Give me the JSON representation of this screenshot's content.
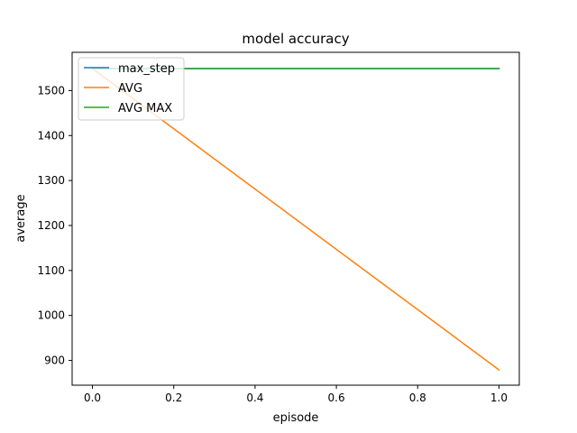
{
  "chart_data": {
    "type": "line",
    "title": "model accuracy",
    "xlabel": "episode",
    "ylabel": "average",
    "x": [
      0.0,
      1.0
    ],
    "xlim": [
      -0.05,
      1.05
    ],
    "ylim": [
      845,
      1585
    ],
    "xticks": [
      0.0,
      0.2,
      0.4,
      0.6,
      0.8,
      1.0
    ],
    "xtick_labels": [
      "0.0",
      "0.2",
      "0.4",
      "0.6",
      "0.8",
      "1.0"
    ],
    "yticks": [
      900,
      1000,
      1100,
      1200,
      1300,
      1400,
      1500
    ],
    "ytick_labels": [
      "900",
      "1000",
      "1100",
      "1200",
      "1300",
      "1400",
      "1500"
    ],
    "grid": false,
    "legend_position": "upper-left",
    "series": [
      {
        "name": "max_step",
        "values": [
          1549,
          1549
        ],
        "color": "#1f77b4"
      },
      {
        "name": "AVG",
        "values": [
          1549,
          879
        ],
        "color": "#ff7f0e"
      },
      {
        "name": "AVG MAX",
        "values": [
          1549,
          1549
        ],
        "color": "#2ca02c"
      }
    ]
  }
}
